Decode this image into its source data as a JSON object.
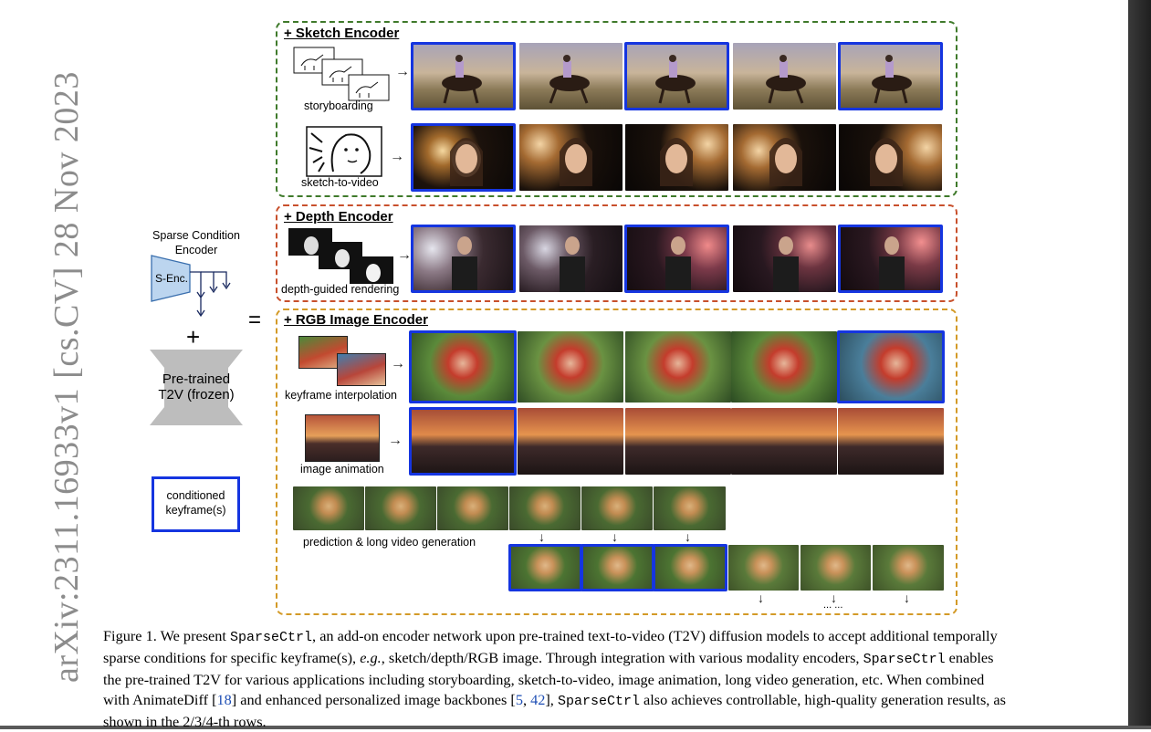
{
  "arxiv_stamp": "arXiv:2311.16933v1  [cs.CV]  28 Nov 2023",
  "legend": {
    "sparse_title": "Sparse Condition Encoder",
    "senc_label": "S-Enc.",
    "plus": "+",
    "t2v_label": "Pre-trained T2V (frozen)",
    "equals": "=",
    "keyframe_label": "conditioned keyframe(s)"
  },
  "panels": {
    "sketch": {
      "title": "+ Sketch Encoder",
      "row1_caption": "storyboarding",
      "row2_caption": "sketch-to-video",
      "color": "#3f7a2b"
    },
    "depth": {
      "title": "+ Depth Encoder",
      "row1_caption": "depth-guided rendering",
      "color": "#c8502c"
    },
    "rgb": {
      "title": "+ RGB Image Encoder",
      "row1_caption": "keyframe interpolation",
      "row2_caption": "image animation",
      "row3_caption": "prediction & long video generation",
      "ellipsis": "... ...",
      "color": "#d39a27"
    }
  },
  "highlight_color": "#1535e0",
  "caption": {
    "figure_label": "Figure 1.",
    "p1": " We present ",
    "m1": "SparseCtrl",
    "p2": ", an add-on encoder network upon pre-trained text-to-video (T2V) diffusion models to accept additional temporally sparse conditions for specific keyframe(s), ",
    "eg": "e.g.",
    "p3": ", sketch/depth/RGB image. Through integration with various modality encoders, ",
    "m2": "SparseCtrl",
    "p4": " enables the pre-trained T2V for various applications including storyboarding, sketch-to-video, image animation, long video generation, etc. When combined with AnimateDiff [",
    "r1": "18",
    "p5": "] and enhanced personalized image backbones [",
    "r2": "5",
    "p6": ", ",
    "r3": "42",
    "p7": "], ",
    "m3": "SparseCtrl",
    "p8": " also achieves controllable, high-quality generation results, as shown in the 2/3/4-th rows."
  }
}
